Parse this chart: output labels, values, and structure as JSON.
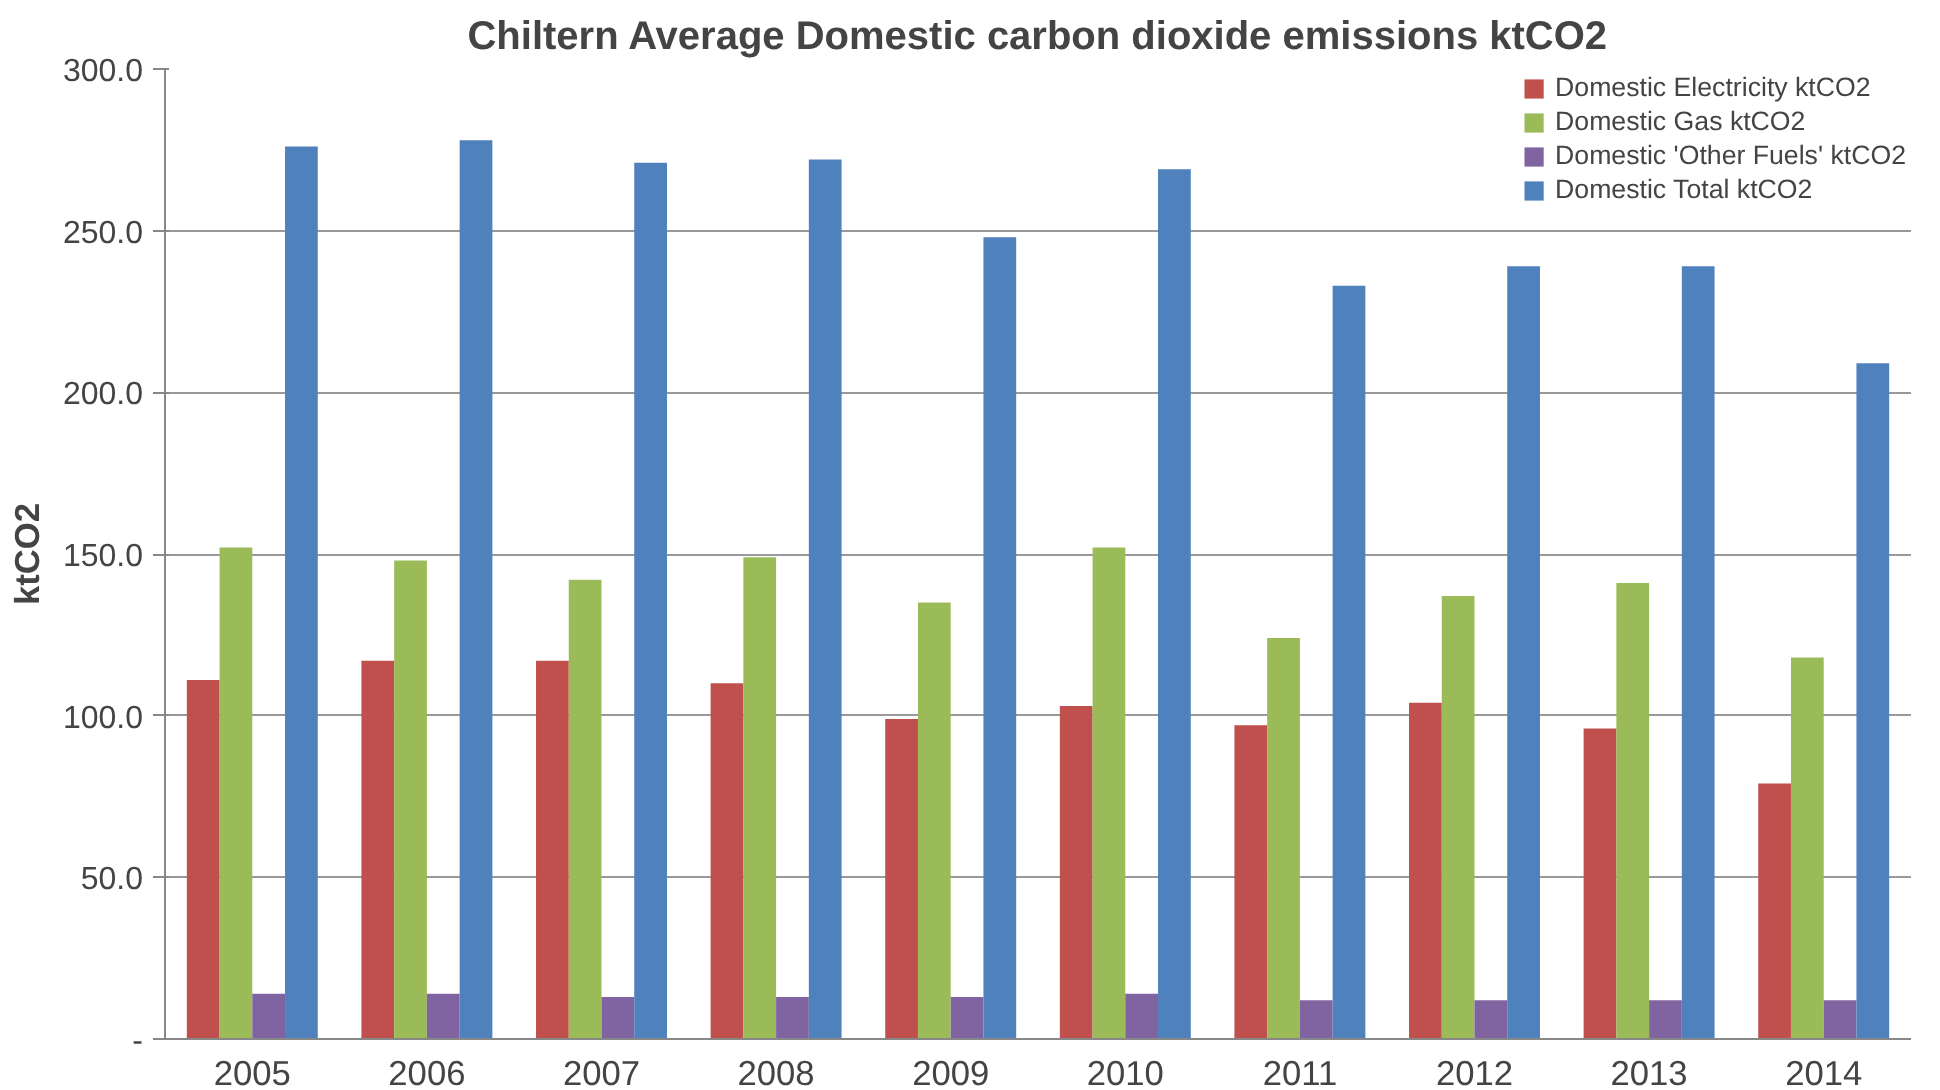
{
  "chart_data": {
    "type": "bar",
    "title": "Chiltern Average Domestic carbon dioxide emissions ktCO2",
    "ylabel": "ktCO2",
    "categories": [
      "2005",
      "2006",
      "2007",
      "2008",
      "2009",
      "2010",
      "2011",
      "2012",
      "2013",
      "2014"
    ],
    "series": [
      {
        "name": "Domestic Electricity ktCO2",
        "color": "#c0504d",
        "values": [
          111,
          117,
          117,
          110,
          99,
          103,
          97,
          104,
          96,
          79
        ]
      },
      {
        "name": "Domestic Gas ktCO2",
        "color": "#9bbb59",
        "values": [
          152,
          148,
          142,
          149,
          135,
          152,
          124,
          137,
          141,
          118
        ]
      },
      {
        "name": "Domestic 'Other Fuels' ktCO2",
        "color": "#8064a2",
        "values": [
          14,
          14,
          13,
          13,
          13,
          14,
          12,
          12,
          12,
          12
        ]
      },
      {
        "name": "Domestic Total ktCO2",
        "color": "#4f81bd",
        "values": [
          276,
          278,
          271,
          272,
          248,
          269,
          233,
          239,
          239,
          209
        ]
      }
    ],
    "ylim": [
      0,
      300
    ],
    "yticks": [
      {
        "value": 0,
        "label": "-"
      },
      {
        "value": 50,
        "label": "50.0"
      },
      {
        "value": 100,
        "label": "100.0"
      },
      {
        "value": 150,
        "label": "150.0"
      },
      {
        "value": 200,
        "label": "200.0"
      },
      {
        "value": 250,
        "label": "250.0"
      },
      {
        "value": 300,
        "label": "300.0"
      }
    ],
    "grid": "y",
    "legend": "top right"
  }
}
